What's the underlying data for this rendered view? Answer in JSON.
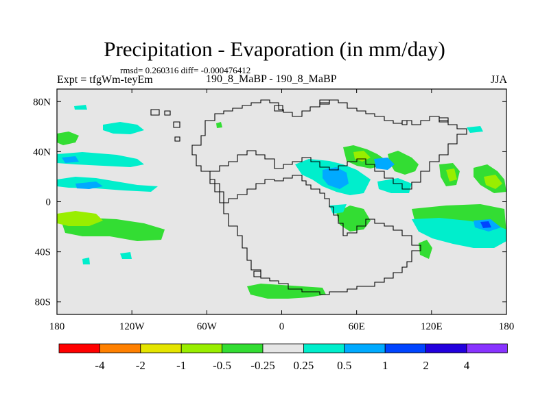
{
  "chart_data": {
    "type": "heatmap",
    "title": "Precipitation - Evaporation (in mm/day)",
    "stats_line": "rmsd= 0.260316 diff= -0.000476412",
    "experiment_label": "Expt = tfgWm-teyEm",
    "comparison_label": "190_8_MaBP - 190_8_MaBP",
    "season": "JJA",
    "x_range": [
      -180,
      180
    ],
    "y_range": [
      -90,
      90
    ],
    "x_ticks": [
      {
        "value": -180,
        "label": "180"
      },
      {
        "value": -120,
        "label": "120W"
      },
      {
        "value": -60,
        "label": "60W"
      },
      {
        "value": 0,
        "label": "0"
      },
      {
        "value": 60,
        "label": "60E"
      },
      {
        "value": 120,
        "label": "120E"
      },
      {
        "value": 180,
        "label": "180"
      }
    ],
    "y_ticks": [
      {
        "value": 80,
        "label": "80N"
      },
      {
        "value": 40,
        "label": "40N"
      },
      {
        "value": 0,
        "label": "0"
      },
      {
        "value": -40,
        "label": "40S"
      },
      {
        "value": -80,
        "label": "80S"
      }
    ],
    "colorbar": {
      "levels": [
        "-4",
        "-2",
        "-1",
        "-0.5",
        "-0.25",
        "0.25",
        "0.5",
        "1",
        "2",
        "4"
      ],
      "colors": [
        "#ff0000",
        "#ff8000",
        "#e5e500",
        "#99ee00",
        "#33dd33",
        "#e6e6e6",
        "#00eecc",
        "#00aaff",
        "#0044ff",
        "#2200dd",
        "#8833ff"
      ]
    },
    "background_color": "#e6e6e6"
  }
}
